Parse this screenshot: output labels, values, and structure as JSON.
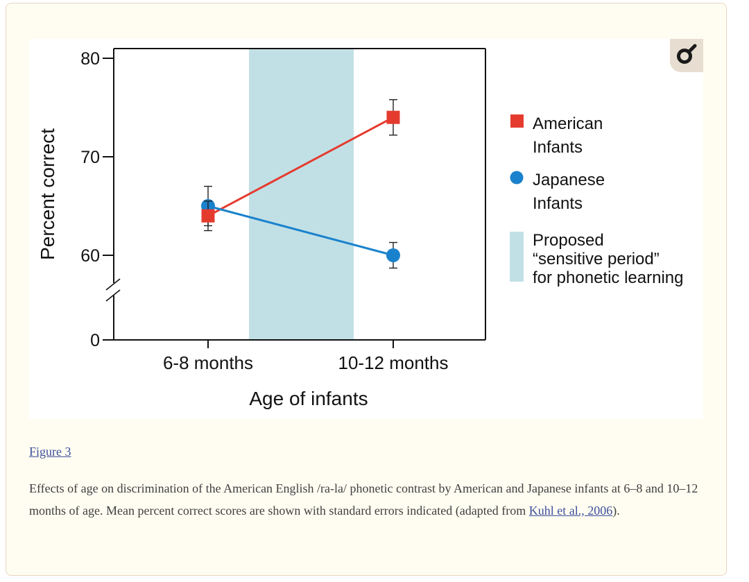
{
  "figure_link": "Figure 3",
  "caption": {
    "text_before": "Effects of age on discrimination of the American English /ra-la/ phonetic contrast by American and Japanese infants at 6–8 and 10–12 months of age. Mean percent correct scores are shown with standard errors indicated (adapted from ",
    "link_text": "Kuhl et al., 2006",
    "text_after": ")."
  },
  "zoom_icon": "magnifier-icon",
  "colors": {
    "american": "#e53b2f",
    "japanese": "#1a82cc",
    "sensitive_period": "#c1e0e6",
    "card_background": "#fffdf1"
  },
  "chart_data": {
    "type": "line",
    "title": "",
    "xlabel": "Age of infants",
    "ylabel": "Percent correct",
    "categories": [
      "6-8 months",
      "10-12 months"
    ],
    "y_ticks": [
      0,
      60,
      70,
      80
    ],
    "axis_break": "between 0 and 60",
    "ylim": [
      60,
      80
    ],
    "series": [
      {
        "name": "American Infants",
        "marker": "square",
        "color": "#e53b2f",
        "values": [
          64,
          74
        ],
        "error": [
          1.5,
          1.8
        ]
      },
      {
        "name": "Japanese Infants",
        "marker": "circle",
        "color": "#1a82cc",
        "values": [
          65,
          60
        ],
        "error": [
          2,
          1.3
        ]
      }
    ],
    "shaded_region": {
      "label": "Proposed “sensitive period” for phonetic learning",
      "label_lines": [
        "Proposed",
        "“sensitive period”",
        "for phonetic learning"
      ],
      "color": "#c1e0e6"
    },
    "legend": {
      "position": "right",
      "entries": [
        {
          "lines": [
            "American",
            "Infants"
          ],
          "marker": "square",
          "color": "#e53b2f"
        },
        {
          "lines": [
            "Japanese",
            "Infants"
          ],
          "marker": "circle",
          "color": "#1a82cc"
        }
      ]
    },
    "grid": false
  }
}
